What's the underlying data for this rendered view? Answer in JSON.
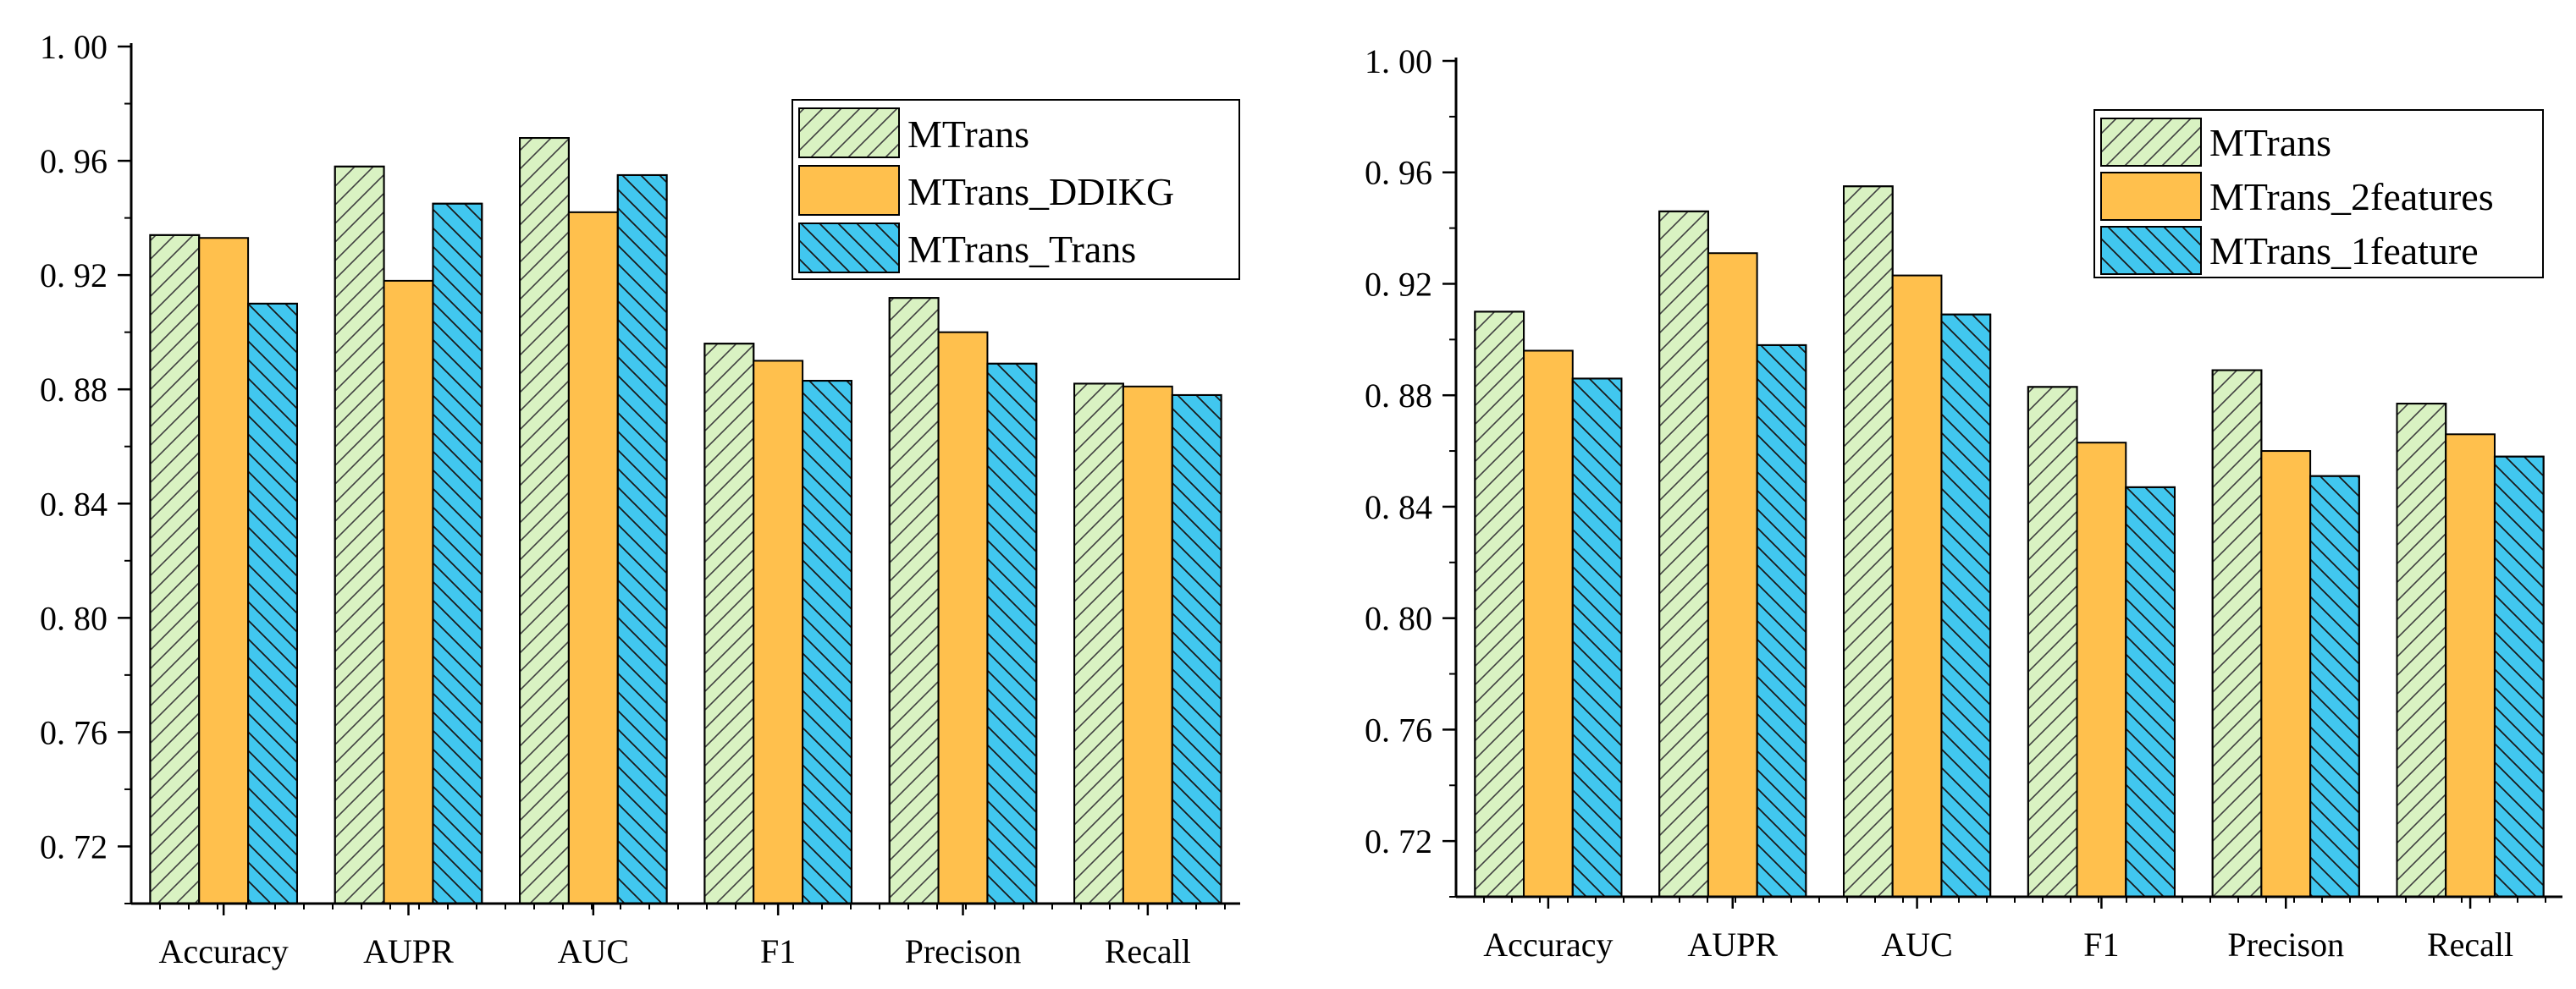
{
  "chart_data": [
    {
      "type": "bar",
      "categories": [
        "Accuracy",
        "AUPR",
        "AUC",
        "F1",
        "Precison",
        "Recall"
      ],
      "ylim": [
        0.7,
        1.0
      ],
      "yticks": [
        "0.72",
        "0.76",
        "0.80",
        "0.84",
        "0.88",
        "0.92",
        "0.96",
        "1.00"
      ],
      "legend_position": "top-right",
      "series": [
        {
          "name": "MTrans",
          "color": "#d9f2c2",
          "hatch": "forward-diagonal",
          "values": [
            0.934,
            0.958,
            0.968,
            0.896,
            0.912,
            0.882
          ]
        },
        {
          "name": "MTrans_DDIKG",
          "color": "#ffc04d",
          "hatch": "none",
          "values": [
            0.933,
            0.918,
            0.942,
            0.89,
            0.9,
            0.881
          ]
        },
        {
          "name": "MTrans_Trans",
          "color": "#41c7ef",
          "hatch": "back-diagonal",
          "values": [
            0.91,
            0.945,
            0.955,
            0.883,
            0.889,
            0.878
          ]
        }
      ]
    },
    {
      "type": "bar",
      "categories": [
        "Accuracy",
        "AUPR",
        "AUC",
        "F1",
        "Precison",
        "Recall"
      ],
      "ylim": [
        0.7,
        1.0
      ],
      "yticks": [
        "0.72",
        "0.76",
        "0.80",
        "0.84",
        "0.88",
        "0.92",
        "0.96",
        "1.00"
      ],
      "legend_position": "top-right",
      "series": [
        {
          "name": "MTrans",
          "color": "#d9f2c2",
          "hatch": "forward-diagonal",
          "values": [
            0.91,
            0.946,
            0.955,
            0.883,
            0.889,
            0.877
          ]
        },
        {
          "name": "MTrans_2features",
          "color": "#ffc04d",
          "hatch": "none",
          "values": [
            0.896,
            0.931,
            0.923,
            0.863,
            0.86,
            0.866
          ]
        },
        {
          "name": "MTrans_1feature",
          "color": "#41c7ef",
          "hatch": "back-diagonal",
          "values": [
            0.886,
            0.898,
            0.909,
            0.847,
            0.851,
            0.858
          ]
        }
      ]
    }
  ]
}
